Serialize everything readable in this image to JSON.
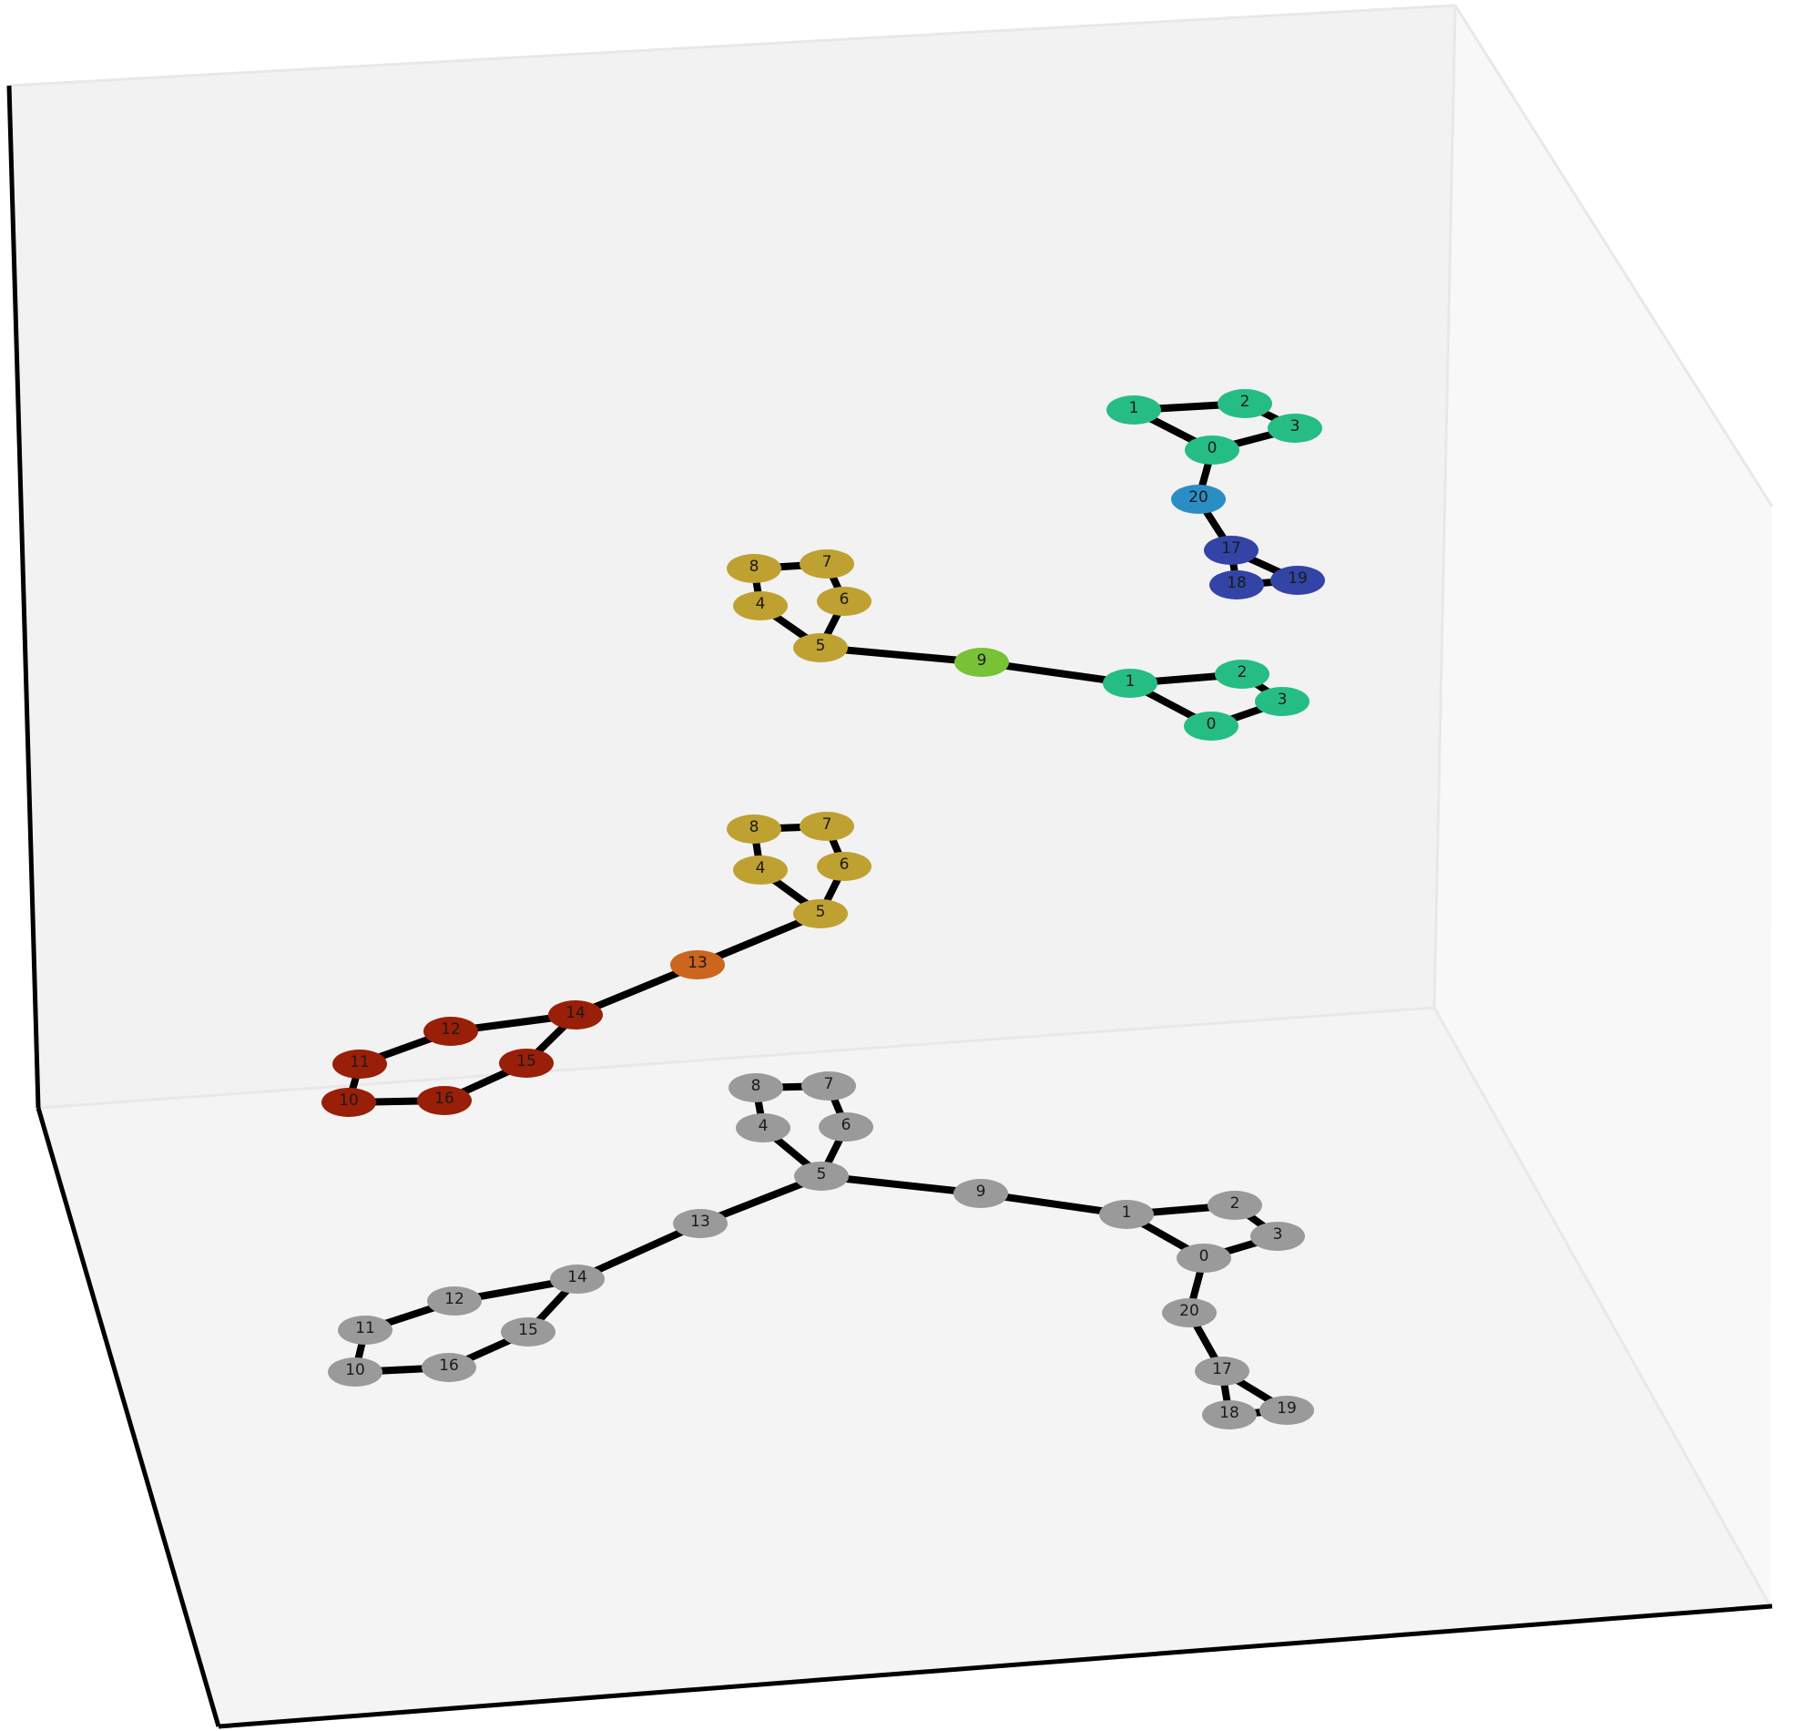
{
  "colors": {
    "pane_back": "#f2f2f2",
    "pane_floor": "#f4f4f4",
    "pane_side": "#f8f8f8",
    "pane_edge": "#e8e8e8",
    "axis": "#000000",
    "edge": "#000000"
  },
  "groups": [
    {
      "id": "top-cluster",
      "nodes": [
        {
          "label": "1",
          "color": "#26bd84"
        },
        {
          "label": "2",
          "color": "#26bd84"
        },
        {
          "label": "3",
          "color": "#26bd84"
        },
        {
          "label": "0",
          "color": "#26bd84"
        },
        {
          "label": "20",
          "color": "#2a8ec4"
        },
        {
          "label": "17",
          "color": "#3344a6"
        },
        {
          "label": "18",
          "color": "#3344a6"
        },
        {
          "label": "19",
          "color": "#3344a6"
        }
      ]
    },
    {
      "id": "upper-chain",
      "nodes": [
        {
          "label": "8",
          "color": "#bfa132"
        },
        {
          "label": "7",
          "color": "#bfa132"
        },
        {
          "label": "4",
          "color": "#bfa132"
        },
        {
          "label": "6",
          "color": "#bfa132"
        },
        {
          "label": "5",
          "color": "#bfa132"
        },
        {
          "label": "9",
          "color": "#77c236"
        },
        {
          "label": "1",
          "color": "#26bd84"
        },
        {
          "label": "2",
          "color": "#26bd84"
        },
        {
          "label": "3",
          "color": "#26bd84"
        },
        {
          "label": "0",
          "color": "#26bd84"
        }
      ]
    },
    {
      "id": "lower-chain",
      "nodes": [
        {
          "label": "8",
          "color": "#bfa132"
        },
        {
          "label": "7",
          "color": "#bfa132"
        },
        {
          "label": "4",
          "color": "#bfa132"
        },
        {
          "label": "6",
          "color": "#bfa132"
        },
        {
          "label": "5",
          "color": "#bfa132"
        },
        {
          "label": "13",
          "color": "#cc651e"
        },
        {
          "label": "14",
          "color": "#9a1f08"
        },
        {
          "label": "12",
          "color": "#9a1f08"
        },
        {
          "label": "15",
          "color": "#9a1f08"
        },
        {
          "label": "11",
          "color": "#9a1f08"
        },
        {
          "label": "10",
          "color": "#9a1f08"
        },
        {
          "label": "16",
          "color": "#9a1f08"
        }
      ]
    },
    {
      "id": "floor-graph",
      "nodes": [
        {
          "label": "8",
          "color": "#9a9a9a"
        },
        {
          "label": "7",
          "color": "#9a9a9a"
        },
        {
          "label": "4",
          "color": "#9a9a9a"
        },
        {
          "label": "6",
          "color": "#9a9a9a"
        },
        {
          "label": "5",
          "color": "#9a9a9a"
        },
        {
          "label": "9",
          "color": "#9a9a9a"
        },
        {
          "label": "1",
          "color": "#9a9a9a"
        },
        {
          "label": "2",
          "color": "#9a9a9a"
        },
        {
          "label": "3",
          "color": "#9a9a9a"
        },
        {
          "label": "0",
          "color": "#9a9a9a"
        },
        {
          "label": "20",
          "color": "#9a9a9a"
        },
        {
          "label": "17",
          "color": "#9a9a9a"
        },
        {
          "label": "18",
          "color": "#9a9a9a"
        },
        {
          "label": "19",
          "color": "#9a9a9a"
        },
        {
          "label": "13",
          "color": "#9a9a9a"
        },
        {
          "label": "14",
          "color": "#9a9a9a"
        },
        {
          "label": "12",
          "color": "#9a9a9a"
        },
        {
          "label": "15",
          "color": "#9a9a9a"
        },
        {
          "label": "11",
          "color": "#9a9a9a"
        },
        {
          "label": "10",
          "color": "#9a9a9a"
        },
        {
          "label": "16",
          "color": "#9a9a9a"
        }
      ]
    }
  ]
}
